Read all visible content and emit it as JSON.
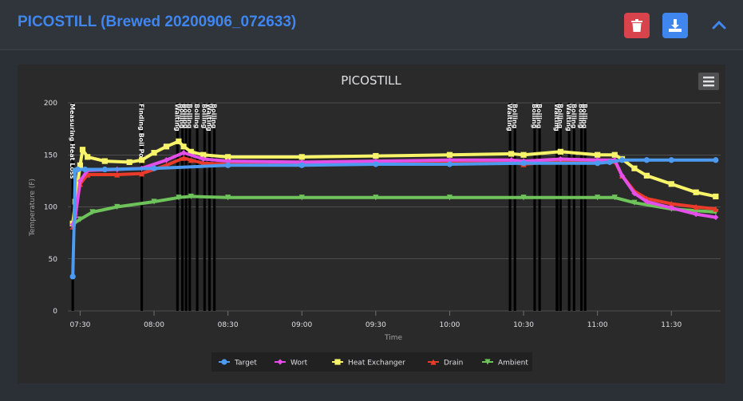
{
  "header": {
    "title": "PICOSTILL (Brewed 20200906_072633)",
    "delete_icon": "trash-icon",
    "download_icon": "download-icon",
    "collapse_icon": "chevron-up-icon"
  },
  "menu_icon": "hamburger-menu-icon",
  "colors": {
    "accent": "#3f86ee",
    "danger": "#d9434b",
    "Target": "#4d9bf0",
    "Wort": "#e34fe8",
    "Heat Exchanger": "#f7f46a",
    "Drain": "#ea3a2a",
    "Ambient": "#6ec45a"
  },
  "chart_data": {
    "type": "line",
    "title": "PICOSTILL",
    "xlabel": "Time",
    "ylabel": "Temperature (F)",
    "ylim": [
      0,
      200
    ],
    "yticks": [
      0,
      50,
      100,
      150,
      200
    ],
    "xlim": [
      "07:25",
      "11:50"
    ],
    "xticks": [
      "07:30",
      "08:00",
      "08:30",
      "09:00",
      "09:30",
      "10:00",
      "10:30",
      "11:00",
      "11:30"
    ],
    "grid": true,
    "legend_position": "bottom",
    "series": [
      {
        "name": "Target",
        "marker": "circle",
        "x": [
          "07:27",
          "07:28",
          "07:29",
          "07:32",
          "07:40",
          "08:00",
          "08:30",
          "09:00",
          "09:30",
          "10:00",
          "10:30",
          "11:00",
          "11:05",
          "11:10",
          "11:20",
          "11:30",
          "11:48"
        ],
        "y": [
          33,
          135,
          136,
          136,
          136,
          137,
          140,
          140,
          141,
          141,
          142,
          142,
          143,
          145,
          145,
          145,
          145
        ]
      },
      {
        "name": "Wort",
        "marker": "diamond",
        "x": [
          "07:27",
          "07:28",
          "07:30",
          "07:33",
          "07:45",
          "07:55",
          "08:05",
          "08:12",
          "08:20",
          "08:30",
          "09:00",
          "09:30",
          "10:00",
          "10:25",
          "10:30",
          "10:45",
          "11:00",
          "11:07",
          "11:10",
          "11:15",
          "11:20",
          "11:30",
          "11:40",
          "11:48"
        ],
        "y": [
          83,
          90,
          125,
          135,
          136,
          137,
          145,
          152,
          146,
          144,
          143,
          144,
          145,
          145,
          144,
          146,
          145,
          145,
          130,
          113,
          105,
          99,
          93,
          90
        ]
      },
      {
        "name": "Heat Exchanger",
        "marker": "square",
        "x": [
          "07:27",
          "07:28",
          "07:30",
          "07:31",
          "07:33",
          "07:40",
          "07:50",
          "07:55",
          "08:00",
          "08:05",
          "08:10",
          "08:12",
          "08:15",
          "08:20",
          "08:30",
          "09:00",
          "09:30",
          "10:00",
          "10:25",
          "10:30",
          "10:45",
          "11:00",
          "11:07",
          "11:10",
          "11:15",
          "11:20",
          "11:30",
          "11:40",
          "11:48"
        ],
        "y": [
          84,
          105,
          140,
          155,
          148,
          144,
          143,
          145,
          152,
          158,
          163,
          158,
          153,
          150,
          148,
          148,
          149,
          150,
          151,
          150,
          153,
          150,
          150,
          146,
          137,
          130,
          122,
          114,
          110
        ]
      },
      {
        "name": "Drain",
        "marker": "triangle",
        "x": [
          "07:27",
          "07:28",
          "07:30",
          "07:33",
          "07:45",
          "07:55",
          "08:05",
          "08:12",
          "08:15",
          "08:20",
          "08:30",
          "09:00",
          "09:30",
          "10:00",
          "10:25",
          "10:30",
          "10:45",
          "11:00",
          "11:07",
          "11:10",
          "11:15",
          "11:20",
          "11:30",
          "11:40",
          "11:48"
        ],
        "y": [
          81,
          95,
          122,
          131,
          131,
          132,
          140,
          147,
          145,
          142,
          141,
          141,
          142,
          143,
          143,
          141,
          144,
          144,
          144,
          130,
          115,
          108,
          103,
          100,
          98
        ]
      },
      {
        "name": "Ambient",
        "marker": "triangle-down",
        "x": [
          "07:27",
          "07:28",
          "07:30",
          "07:35",
          "07:45",
          "08:00",
          "08:10",
          "08:15",
          "08:30",
          "09:00",
          "09:30",
          "10:00",
          "10:30",
          "11:00",
          "11:07",
          "11:15",
          "11:30",
          "11:48"
        ],
        "y": [
          82,
          85,
          88,
          95,
          100,
          105,
          109,
          110,
          109,
          109,
          109,
          109,
          109,
          109,
          109,
          104,
          98,
          95
        ]
      }
    ],
    "plot_bands": [
      {
        "from": "07:26.5",
        "to": "07:27.5",
        "label": "Measuring Heat Loss"
      },
      {
        "from": "07:54.5",
        "to": "07:55.5",
        "label": "Finding Boil Po"
      },
      {
        "from": "08:09",
        "to": "08:10",
        "label": "Waiting"
      },
      {
        "from": "08:11",
        "to": "08:12",
        "label": "Boiling"
      },
      {
        "from": "08:12.5",
        "to": "08:13.5",
        "label": "Boiling"
      },
      {
        "from": "08:14",
        "to": "08:15",
        "label": "Boiling"
      },
      {
        "from": "08:17",
        "to": "08:18",
        "label": "Boiling"
      },
      {
        "from": "08:20",
        "to": "08:21",
        "label": "Boiling"
      },
      {
        "from": "08:22",
        "to": "08:23",
        "label": "Waiting"
      },
      {
        "from": "08:24",
        "to": "08:25",
        "label": "Boiling"
      },
      {
        "from": "10:24",
        "to": "10:25",
        "label": "Waiting"
      },
      {
        "from": "10:26",
        "to": "10:27",
        "label": "Boiling"
      },
      {
        "from": "10:34",
        "to": "10:35",
        "label": "Boiling"
      },
      {
        "from": "10:36",
        "to": "10:37",
        "label": "Boiling"
      },
      {
        "from": "10:43",
        "to": "10:44.2",
        "label": "Waiting"
      },
      {
        "from": "10:44.5",
        "to": "10:45.5",
        "label": "Boiling"
      },
      {
        "from": "10:48",
        "to": "10:49",
        "label": "Waiting"
      },
      {
        "from": "10:50",
        "to": "10:51",
        "label": "Boiling"
      },
      {
        "from": "10:53",
        "to": "10:54",
        "label": "Boiling"
      },
      {
        "from": "10:54.5",
        "to": "10:55.5",
        "label": "Boiling"
      }
    ]
  }
}
